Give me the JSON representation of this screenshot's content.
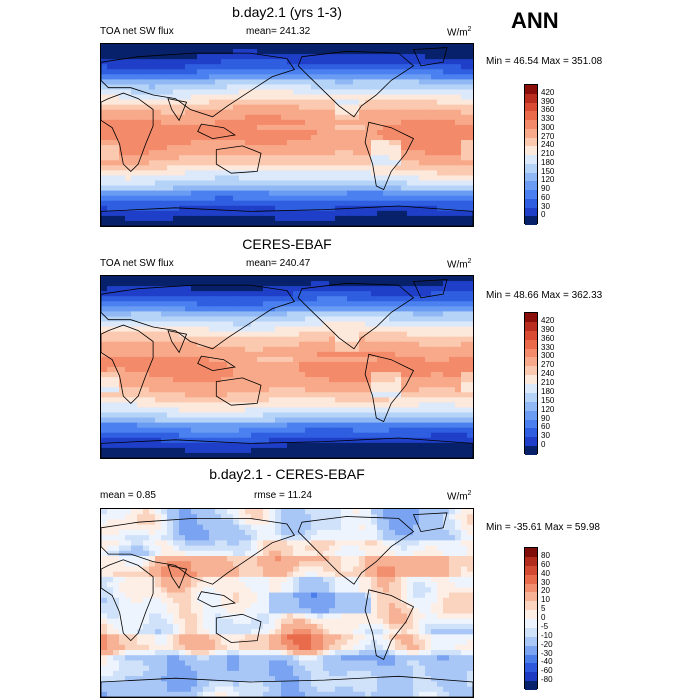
{
  "season": "ANN",
  "colors": {
    "abs_scale": [
      "#08216b",
      "#1f3fc8",
      "#2f5fe0",
      "#4a80f0",
      "#6a9cf3",
      "#8fb8f5",
      "#b5d2f7",
      "#dbe9fb",
      "#fde8dc",
      "#fbc9af",
      "#f8a98a",
      "#f38a6a",
      "#ea6a4c",
      "#d94b33",
      "#b92d1e",
      "#8a0f0a"
    ],
    "diff_scale": [
      "#08216b",
      "#1c3ac2",
      "#2f59dc",
      "#4b7ee9",
      "#7aa4f1",
      "#a8c6f6",
      "#d0e2fa",
      "#eef4fd",
      "#fdeee6",
      "#fbd4c0",
      "#f7b296",
      "#f18f6e",
      "#e86b4c",
      "#d34a32",
      "#b22c1d",
      "#7f0d0a"
    ]
  },
  "chart_data": [
    {
      "type": "heatmap",
      "title": "b.day2.1 (yrs 1-3)",
      "variable": "TOA net SW flux",
      "stat_label": "mean=",
      "stat_value": "241.32",
      "units_prefix": "W/m",
      "units_exp": "2",
      "minmax": "Min =  46.54 Max = 351.08",
      "levels": [
        "420",
        "390",
        "360",
        "330",
        "300",
        "270",
        "240",
        "210",
        "180",
        "150",
        "120",
        "90",
        "60",
        "30",
        "0"
      ],
      "palette": "abs",
      "field": "abs1"
    },
    {
      "type": "heatmap",
      "title": "CERES-EBAF",
      "variable": "TOA net SW flux",
      "stat_label": "mean=",
      "stat_value": "240.47",
      "units_prefix": "W/m",
      "units_exp": "2",
      "minmax": "Min =  48.66 Max = 362.33",
      "levels": [
        "420",
        "390",
        "360",
        "330",
        "300",
        "270",
        "240",
        "210",
        "180",
        "150",
        "120",
        "90",
        "60",
        "30",
        "0"
      ],
      "palette": "abs",
      "field": "abs2"
    },
    {
      "type": "heatmap",
      "title": "b.day2.1 - CERES-EBAF",
      "variable": "mean =    0.85",
      "stat_label": "rmse =",
      "stat_value": "11.24",
      "units_prefix": "W/m",
      "units_exp": "2",
      "minmax": "Min = -35.61 Max =  59.98",
      "levels": [
        "80",
        "60",
        "40",
        "30",
        "20",
        "10",
        "5",
        "0",
        "-5",
        "-10",
        "-20",
        "-30",
        "-40",
        "-60",
        "-80"
      ],
      "palette": "diff",
      "field": "diff"
    }
  ]
}
